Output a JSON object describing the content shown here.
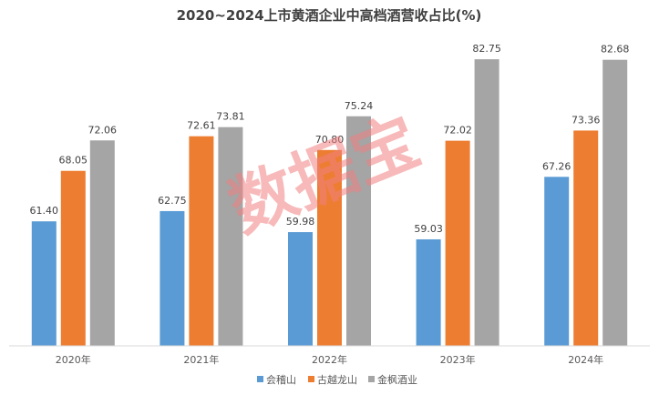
{
  "chart_data": {
    "type": "bar",
    "title": "2020~2024上市黄酒企业中高档酒营收占比(%)",
    "categories": [
      "2020年",
      "2021年",
      "2022年",
      "2023年",
      "2024年"
    ],
    "series": [
      {
        "name": "会稽山",
        "color": "#5b9bd5",
        "values": [
          61.4,
          62.75,
          59.98,
          59.03,
          67.26
        ]
      },
      {
        "name": "古越龙山",
        "color": "#ed7d31",
        "values": [
          68.05,
          72.61,
          70.8,
          72.02,
          73.36
        ]
      },
      {
        "name": "金枫酒业",
        "color": "#a5a5a5",
        "values": [
          72.06,
          73.81,
          75.24,
          82.75,
          82.68
        ]
      }
    ],
    "ylim": [
      45,
      86
    ],
    "grid": false,
    "legend": "bottom",
    "xlabel": "",
    "ylabel": ""
  },
  "watermark": "数据宝"
}
